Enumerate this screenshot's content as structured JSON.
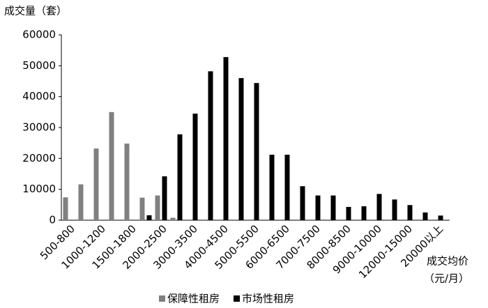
{
  "chart_data": {
    "type": "bar",
    "y_label": "成交量（套）",
    "x_label": [
      "成交均价",
      "（元/月）"
    ],
    "categories": [
      "500-800",
      null,
      "1000-1200",
      null,
      "1500-1800",
      null,
      "2000-2500",
      null,
      "3000-3500",
      null,
      "4000-4500",
      null,
      "5000-5500",
      null,
      "6000-6500",
      null,
      "7000-7500",
      null,
      "8000-8500",
      null,
      "9000-10000",
      null,
      "12000-15000",
      null,
      "20000以上"
    ],
    "series": [
      {
        "name": "保障性租房",
        "color": "#808080",
        "values": [
          7400,
          11600,
          23200,
          35000,
          24800,
          7300,
          8000,
          800,
          0,
          0,
          0,
          0,
          0,
          0,
          0,
          0,
          0,
          0,
          0,
          0,
          0,
          0,
          0,
          0,
          0
        ]
      },
      {
        "name": "市场性租房",
        "color": "#000000",
        "values": [
          0,
          0,
          0,
          0,
          0,
          1600,
          14200,
          27800,
          34500,
          48200,
          52800,
          46000,
          44400,
          21200,
          21200,
          11000,
          8000,
          8000,
          4300,
          4500,
          8500,
          6700,
          4900,
          2500,
          1500
        ]
      }
    ],
    "ylim": [
      0,
      60000
    ],
    "yticks": [
      0,
      10000,
      20000,
      30000,
      40000,
      50000,
      60000
    ],
    "legend": "bottom"
  }
}
